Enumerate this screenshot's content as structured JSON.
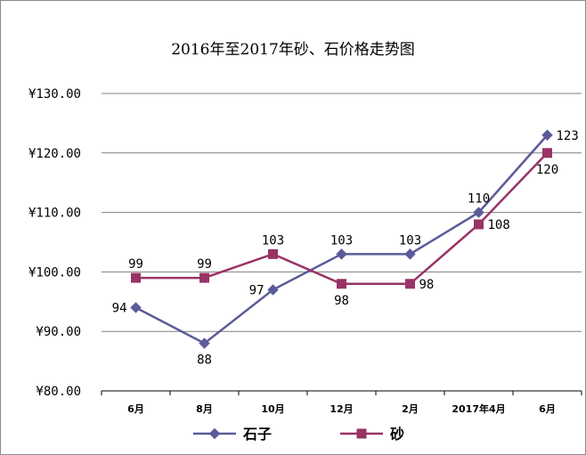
{
  "chart_data": {
    "type": "line",
    "title": "2016年至2017年砂、石价格走势图",
    "categories": [
      "6月",
      "8月",
      "10月",
      "12月",
      "2月",
      "2017年4月",
      "6月"
    ],
    "series": [
      {
        "name": "石子",
        "values": [
          94,
          88,
          97,
          103,
          103,
          110,
          123
        ],
        "color": "#5b5b99",
        "marker": "diamond"
      },
      {
        "name": "砂",
        "values": [
          99,
          99,
          103,
          98,
          98,
          108,
          120
        ],
        "color": "#993366",
        "marker": "square"
      }
    ],
    "ylim": [
      80,
      130
    ],
    "yticks": [
      80,
      90,
      100,
      110,
      120,
      130
    ],
    "ytick_labels": [
      "¥80.00",
      "¥90.00",
      "¥100.00",
      "¥110.00",
      "¥120.00",
      "¥130.00"
    ],
    "grid": true,
    "legend_position": "bottom"
  }
}
